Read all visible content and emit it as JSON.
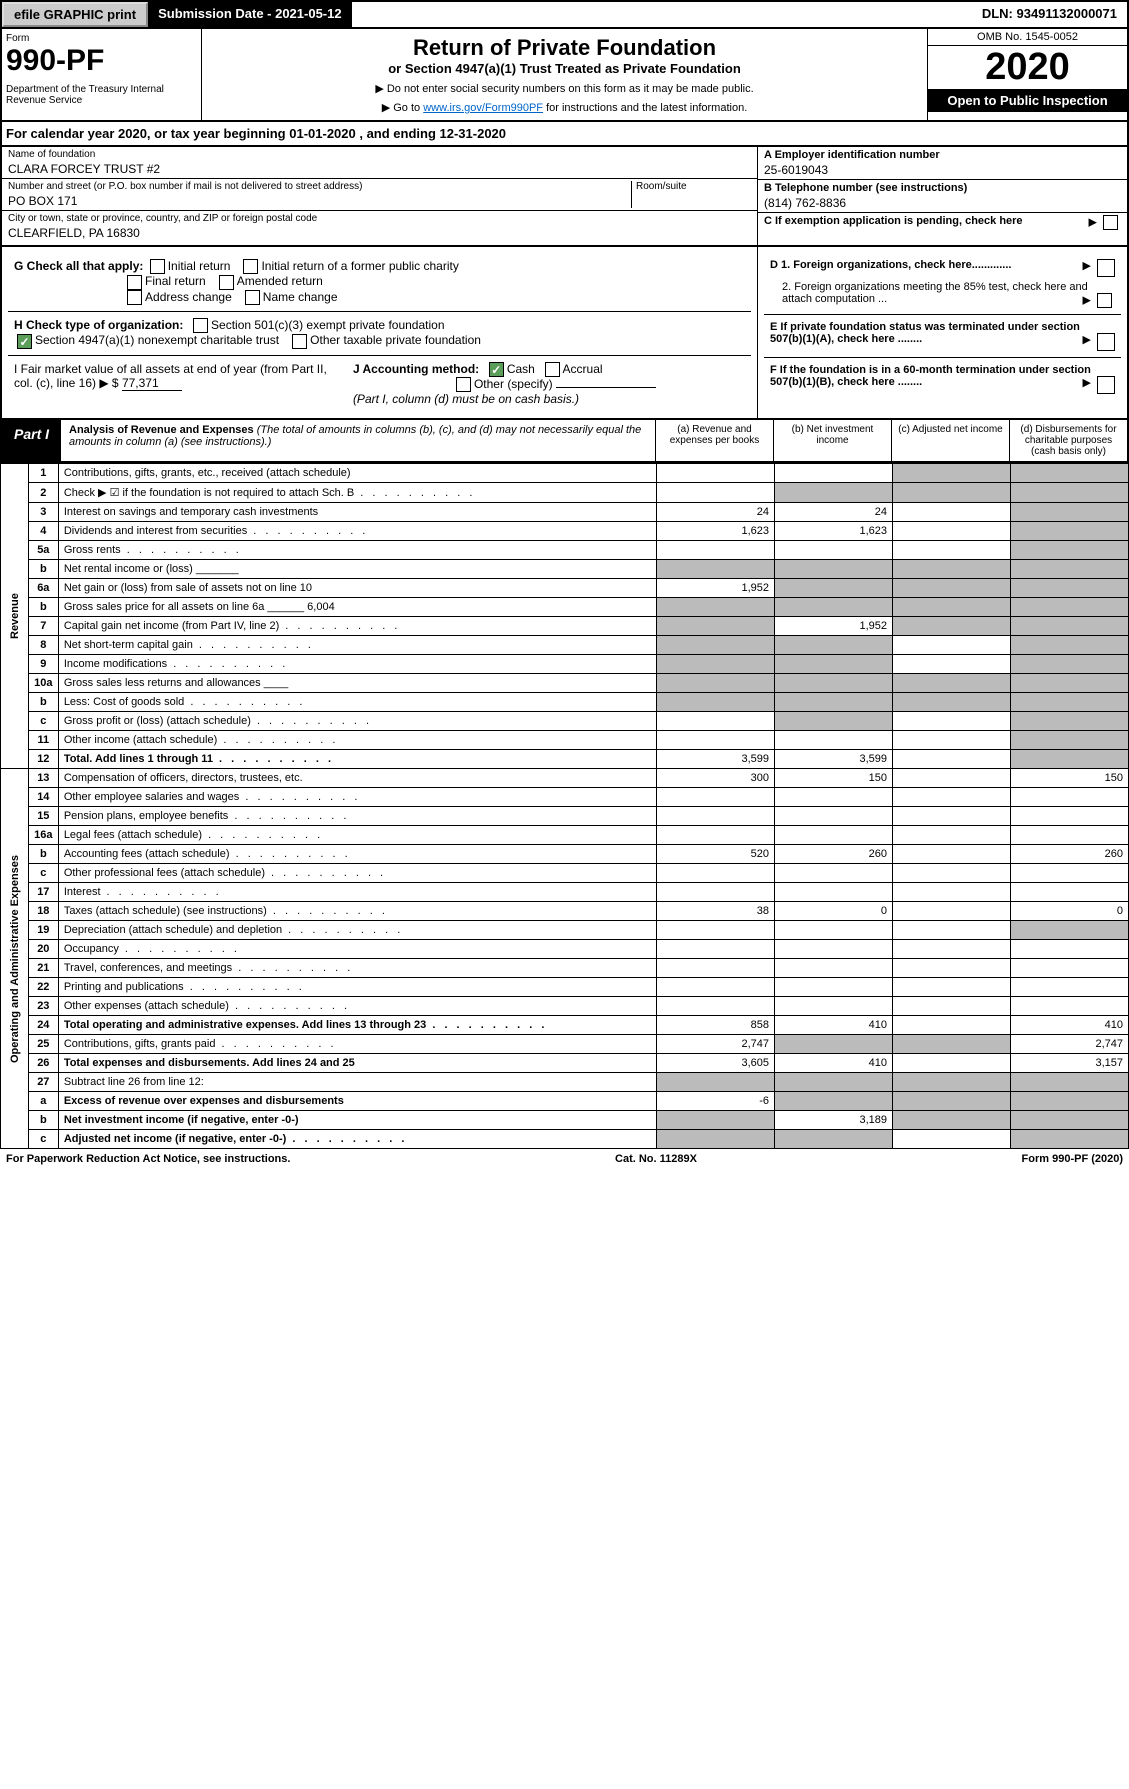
{
  "top": {
    "efile": "efile GRAPHIC print",
    "submission": "Submission Date - 2021-05-12",
    "dln": "DLN: 93491132000071"
  },
  "header": {
    "form_label": "Form",
    "form_num": "990-PF",
    "dept": "Department of the Treasury\nInternal Revenue Service",
    "title": "Return of Private Foundation",
    "subtitle": "or Section 4947(a)(1) Trust Treated as Private Foundation",
    "note1": "▶ Do not enter social security numbers on this form as it may be made public.",
    "note2_pre": "▶ Go to ",
    "note2_link": "www.irs.gov/Form990PF",
    "note2_post": " for instructions and the latest information.",
    "omb": "OMB No. 1545-0052",
    "year": "2020",
    "inspect": "Open to Public Inspection"
  },
  "calyear": {
    "text_pre": "For calendar year 2020, or tax year beginning ",
    "begin": "01-01-2020",
    "mid": " , and ending ",
    "end": "12-31-2020"
  },
  "foundation": {
    "name_lbl": "Name of foundation",
    "name": "CLARA FORCEY TRUST #2",
    "addr_lbl": "Number and street (or P.O. box number if mail is not delivered to street address)",
    "addr": "PO BOX 171",
    "room_lbl": "Room/suite",
    "city_lbl": "City or town, state or province, country, and ZIP or foreign postal code",
    "city": "CLEARFIELD, PA  16830"
  },
  "right_info": {
    "a_lbl": "A Employer identification number",
    "a_val": "25-6019043",
    "b_lbl": "B Telephone number (see instructions)",
    "b_val": "(814) 762-8836",
    "c_lbl": "C  If exemption application is pending, check here",
    "d1": "D 1. Foreign organizations, check here.............",
    "d2": "2. Foreign organizations meeting the 85% test, check here and attach computation ...",
    "e": "E  If private foundation status was terminated under section 507(b)(1)(A), check here ........",
    "f": "F  If the foundation is in a 60-month termination under section 507(b)(1)(B), check here ........"
  },
  "g": {
    "label": "G Check all that apply:",
    "opts": [
      "Initial return",
      "Initial return of a former public charity",
      "Final return",
      "Amended return",
      "Address change",
      "Name change"
    ]
  },
  "h": {
    "label": "H Check type of organization:",
    "opt1": "Section 501(c)(3) exempt private foundation",
    "opt2": "Section 4947(a)(1) nonexempt charitable trust",
    "opt2_on": true,
    "opt3": "Other taxable private foundation"
  },
  "i": {
    "label": "I Fair market value of all assets at end of year (from Part II, col. (c), line 16)",
    "val": "77,371"
  },
  "j": {
    "label": "J Accounting method:",
    "cash": "Cash",
    "cash_on": true,
    "accrual": "Accrual",
    "other": "Other (specify)",
    "note": "(Part I, column (d) must be on cash basis.)"
  },
  "part1": {
    "label": "Part I",
    "title": "Analysis of Revenue and Expenses",
    "sub": "(The total of amounts in columns (b), (c), and (d) may not necessarily equal the amounts in column (a) (see instructions).)",
    "col_a": "(a)   Revenue and expenses per books",
    "col_b": "(b)   Net investment income",
    "col_c": "(c)   Adjusted net income",
    "col_d": "(d)   Disbursements for charitable purposes (cash basis only)"
  },
  "revenue_label": "Revenue",
  "expenses_label": "Operating and Administrative Expenses",
  "rows": [
    {
      "n": "1",
      "d": "Contributions, gifts, grants, etc., received (attach schedule)",
      "a": "",
      "b": "",
      "c": "s",
      "ds": "s"
    },
    {
      "n": "2",
      "d": "Check ▶ ☑ if the foundation is not required to attach Sch. B",
      "a": "",
      "b": "s",
      "c": "s",
      "ds": "s",
      "dots": true
    },
    {
      "n": "3",
      "d": "Interest on savings and temporary cash investments",
      "a": "24",
      "b": "24",
      "c": "",
      "ds": "s"
    },
    {
      "n": "4",
      "d": "Dividends and interest from securities",
      "a": "1,623",
      "b": "1,623",
      "c": "",
      "ds": "s",
      "dots": true
    },
    {
      "n": "5a",
      "d": "Gross rents",
      "a": "",
      "b": "",
      "c": "",
      "ds": "s",
      "dots": true
    },
    {
      "n": "b",
      "d": "Net rental income or (loss)  _______",
      "a": "s",
      "b": "s",
      "c": "s",
      "ds": "s"
    },
    {
      "n": "6a",
      "d": "Net gain or (loss) from sale of assets not on line 10",
      "a": "1,952",
      "b": "s",
      "c": "s",
      "ds": "s"
    },
    {
      "n": "b",
      "d": "Gross sales price for all assets on line 6a ______ 6,004",
      "a": "s",
      "b": "s",
      "c": "s",
      "ds": "s"
    },
    {
      "n": "7",
      "d": "Capital gain net income (from Part IV, line 2)",
      "a": "s",
      "b": "1,952",
      "c": "s",
      "ds": "s",
      "dots": true
    },
    {
      "n": "8",
      "d": "Net short-term capital gain",
      "a": "s",
      "b": "s",
      "c": "",
      "ds": "s",
      "dots": true
    },
    {
      "n": "9",
      "d": "Income modifications",
      "a": "s",
      "b": "s",
      "c": "",
      "ds": "s",
      "dots": true
    },
    {
      "n": "10a",
      "d": "Gross sales less returns and allowances  ____",
      "a": "s",
      "b": "s",
      "c": "s",
      "ds": "s"
    },
    {
      "n": "b",
      "d": "Less: Cost of goods sold",
      "a": "s",
      "b": "s",
      "c": "s",
      "ds": "s",
      "dots": true
    },
    {
      "n": "c",
      "d": "Gross profit or (loss) (attach schedule)",
      "a": "",
      "b": "s",
      "c": "",
      "ds": "s",
      "dots": true
    },
    {
      "n": "11",
      "d": "Other income (attach schedule)",
      "a": "",
      "b": "",
      "c": "",
      "ds": "s",
      "dots": true
    },
    {
      "n": "12",
      "d": "Total. Add lines 1 through 11",
      "a": "3,599",
      "b": "3,599",
      "c": "",
      "ds": "s",
      "bold": true,
      "dots": true
    }
  ],
  "exp_rows": [
    {
      "n": "13",
      "d": "Compensation of officers, directors, trustees, etc.",
      "a": "300",
      "b": "150",
      "c": "",
      "ds": "150"
    },
    {
      "n": "14",
      "d": "Other employee salaries and wages",
      "a": "",
      "b": "",
      "c": "",
      "ds": "",
      "dots": true
    },
    {
      "n": "15",
      "d": "Pension plans, employee benefits",
      "a": "",
      "b": "",
      "c": "",
      "ds": "",
      "dots": true
    },
    {
      "n": "16a",
      "d": "Legal fees (attach schedule)",
      "a": "",
      "b": "",
      "c": "",
      "ds": "",
      "dots": true
    },
    {
      "n": "b",
      "d": "Accounting fees (attach schedule)",
      "a": "520",
      "b": "260",
      "c": "",
      "ds": "260",
      "dots": true
    },
    {
      "n": "c",
      "d": "Other professional fees (attach schedule)",
      "a": "",
      "b": "",
      "c": "",
      "ds": "",
      "dots": true
    },
    {
      "n": "17",
      "d": "Interest",
      "a": "",
      "b": "",
      "c": "",
      "ds": "",
      "dots": true
    },
    {
      "n": "18",
      "d": "Taxes (attach schedule) (see instructions)",
      "a": "38",
      "b": "0",
      "c": "",
      "ds": "0",
      "dots": true
    },
    {
      "n": "19",
      "d": "Depreciation (attach schedule) and depletion",
      "a": "",
      "b": "",
      "c": "",
      "ds": "s",
      "dots": true
    },
    {
      "n": "20",
      "d": "Occupancy",
      "a": "",
      "b": "",
      "c": "",
      "ds": "",
      "dots": true
    },
    {
      "n": "21",
      "d": "Travel, conferences, and meetings",
      "a": "",
      "b": "",
      "c": "",
      "ds": "",
      "dots": true
    },
    {
      "n": "22",
      "d": "Printing and publications",
      "a": "",
      "b": "",
      "c": "",
      "ds": "",
      "dots": true
    },
    {
      "n": "23",
      "d": "Other expenses (attach schedule)",
      "a": "",
      "b": "",
      "c": "",
      "ds": "",
      "dots": true
    },
    {
      "n": "24",
      "d": "Total operating and administrative expenses. Add lines 13 through 23",
      "a": "858",
      "b": "410",
      "c": "",
      "ds": "410",
      "bold": true,
      "dots": true
    },
    {
      "n": "25",
      "d": "Contributions, gifts, grants paid",
      "a": "2,747",
      "b": "s",
      "c": "s",
      "ds": "2,747",
      "dots": true
    },
    {
      "n": "26",
      "d": "Total expenses and disbursements. Add lines 24 and 25",
      "a": "3,605",
      "b": "410",
      "c": "",
      "ds": "3,157",
      "bold": true
    },
    {
      "n": "27",
      "d": "Subtract line 26 from line 12:",
      "a": "s",
      "b": "s",
      "c": "s",
      "ds": "s"
    },
    {
      "n": "a",
      "d": "Excess of revenue over expenses and disbursements",
      "a": "-6",
      "b": "s",
      "c": "s",
      "ds": "s",
      "bold": true
    },
    {
      "n": "b",
      "d": "Net investment income (if negative, enter -0-)",
      "a": "s",
      "b": "3,189",
      "c": "s",
      "ds": "s",
      "bold": true
    },
    {
      "n": "c",
      "d": "Adjusted net income (if negative, enter -0-)",
      "a": "s",
      "b": "s",
      "c": "",
      "ds": "s",
      "bold": true,
      "dots": true
    }
  ],
  "footer": {
    "left": "For Paperwork Reduction Act Notice, see instructions.",
    "mid": "Cat. No. 11289X",
    "right": "Form 990-PF (2020)"
  }
}
